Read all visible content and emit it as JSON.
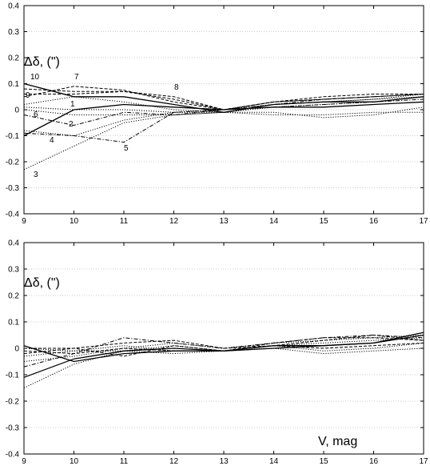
{
  "chart_data": [
    {
      "type": "line",
      "panel_label": "Δδ, (\")",
      "xlabel": "",
      "xlim": [
        9,
        17
      ],
      "ylim": [
        -0.4,
        0.4
      ],
      "x_ticks": [
        "9",
        "10",
        "11",
        "12",
        "13",
        "14",
        "15",
        "16",
        "17"
      ],
      "y_ticks": [
        "-0.4",
        "-0.3",
        "-0.2",
        "-0.1",
        "0",
        "0.1",
        "0.2",
        "0.3",
        "0.4"
      ],
      "grid": true,
      "x": [
        9,
        10,
        11,
        12,
        13,
        14,
        15,
        16,
        17
      ],
      "series": [
        {
          "name": "1",
          "values": [
            -0.1,
            0.0,
            0.02,
            0.01,
            0.0,
            0.01,
            0.01,
            0.02,
            0.03
          ],
          "style": "solid"
        },
        {
          "name": "2",
          "values": [
            -0.02,
            -0.06,
            -0.01,
            -0.02,
            0.0,
            0.01,
            0.02,
            0.03,
            0.04
          ],
          "style": "dashdot"
        },
        {
          "name": "3",
          "values": [
            -0.23,
            -0.14,
            -0.05,
            -0.02,
            -0.01,
            0.01,
            0.02,
            0.03,
            0.05
          ],
          "style": "dotted"
        },
        {
          "name": "4",
          "values": [
            -0.08,
            -0.1,
            -0.04,
            -0.01,
            0.0,
            0.02,
            0.03,
            0.04,
            0.05
          ],
          "style": "dotted"
        },
        {
          "name": "5",
          "values": [
            -0.09,
            -0.1,
            -0.125,
            -0.01,
            0.0,
            0.02,
            0.04,
            0.05,
            0.06
          ],
          "style": "dashdot"
        },
        {
          "name": "6",
          "values": [
            0.02,
            0.05,
            0.03,
            0.0,
            -0.01,
            0.02,
            0.03,
            0.04,
            0.06
          ],
          "style": "dotted"
        },
        {
          "name": "7",
          "values": [
            0.05,
            0.09,
            0.075,
            0.03,
            0.0,
            0.03,
            0.04,
            0.05,
            0.06
          ],
          "style": "dashed"
        },
        {
          "name": "8",
          "values": [
            0.06,
            0.06,
            0.07,
            0.05,
            0.0,
            0.03,
            0.05,
            0.06,
            0.06
          ],
          "style": "dashed"
        },
        {
          "name": "9",
          "values": [
            0.08,
            0.07,
            0.07,
            0.04,
            0.0,
            0.03,
            0.04,
            0.05,
            0.06
          ],
          "style": "dashed"
        },
        {
          "name": "10",
          "values": [
            0.1,
            0.05,
            0.05,
            0.02,
            -0.01,
            0.02,
            0.03,
            0.03,
            0.05
          ],
          "style": "solid"
        },
        {
          "name": "",
          "values": [
            0.0,
            -0.02,
            -0.02,
            -0.02,
            -0.01,
            -0.02,
            -0.02,
            -0.01,
            -0.01
          ],
          "style": "dotted"
        },
        {
          "name": "",
          "values": [
            0.01,
            0.0,
            0.0,
            -0.01,
            -0.01,
            -0.01,
            -0.03,
            -0.02,
            0.01
          ],
          "style": "dotted"
        }
      ]
    },
    {
      "type": "line",
      "panel_label": "Δδ, (\")",
      "xlabel": "V, mag",
      "xlim": [
        9,
        17
      ],
      "ylim": [
        -0.4,
        0.4
      ],
      "x_ticks": [
        "9",
        "10",
        "11",
        "12",
        "13",
        "14",
        "15",
        "16",
        "17"
      ],
      "y_ticks": [
        "-0.4",
        "-0.3",
        "-0.2",
        "-0.1",
        "0",
        "0.1",
        "0.2",
        "0.3",
        "0.4"
      ],
      "grid": true,
      "x": [
        9,
        10,
        11,
        12,
        13,
        14,
        15,
        16,
        17
      ],
      "series": [
        {
          "name": "",
          "values": [
            -0.11,
            -0.04,
            -0.01,
            0.0,
            -0.01,
            0.01,
            0.01,
            0.02,
            0.06
          ],
          "style": "solid"
        },
        {
          "name": "",
          "values": [
            0.01,
            -0.05,
            -0.02,
            -0.01,
            -0.01,
            0.0,
            0.01,
            0.02,
            0.05
          ],
          "style": "solid"
        },
        {
          "name": "",
          "values": [
            -0.15,
            -0.06,
            -0.01,
            0.01,
            -0.01,
            0.01,
            0.02,
            0.03,
            0.04
          ],
          "style": "dotted"
        },
        {
          "name": "",
          "values": [
            -0.05,
            -0.03,
            0.0,
            0.02,
            0.0,
            0.02,
            0.03,
            0.04,
            0.05
          ],
          "style": "dotted"
        },
        {
          "name": "",
          "values": [
            -0.07,
            -0.02,
            0.04,
            0.02,
            0.0,
            0.02,
            0.04,
            0.05,
            0.04
          ],
          "style": "dashdot"
        },
        {
          "name": "",
          "values": [
            -0.02,
            0.0,
            0.02,
            0.03,
            0.0,
            0.01,
            0.03,
            0.05,
            0.03
          ],
          "style": "dashed"
        },
        {
          "name": "",
          "values": [
            0.0,
            0.0,
            -0.03,
            0.01,
            -0.01,
            0.02,
            0.04,
            0.04,
            0.03
          ],
          "style": "dashed"
        },
        {
          "name": "",
          "values": [
            -0.03,
            -0.01,
            0.01,
            -0.01,
            -0.01,
            0.01,
            -0.01,
            0.0,
            0.02
          ],
          "style": "dotted"
        },
        {
          "name": "",
          "values": [
            0.0,
            -0.01,
            -0.01,
            -0.02,
            -0.01,
            0.0,
            -0.02,
            -0.01,
            0.0
          ],
          "style": "dotted"
        },
        {
          "name": "",
          "values": [
            -0.01,
            -0.02,
            0.0,
            -0.01,
            -0.01,
            0.01,
            0.0,
            0.01,
            0.02
          ],
          "style": "dashed"
        }
      ]
    }
  ]
}
